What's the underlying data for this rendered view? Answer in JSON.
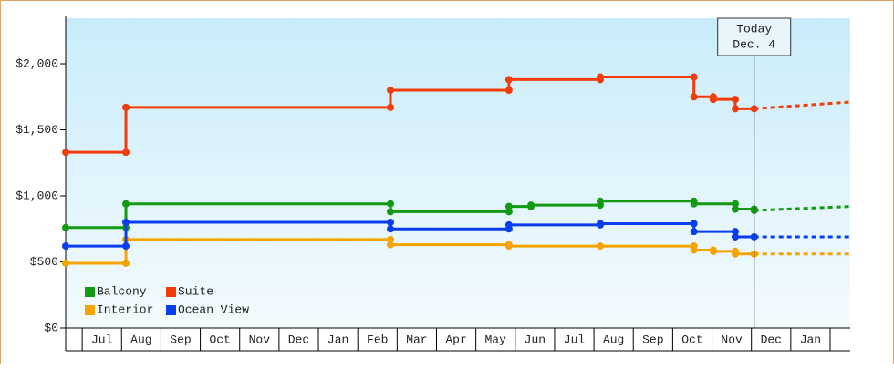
{
  "chart_data": {
    "type": "line",
    "step": true,
    "xlim": [
      0,
      19.93
    ],
    "ylim": [
      0,
      2345
    ],
    "xticks": [
      {
        "value": 0.92,
        "label": "Jul"
      },
      {
        "value": 1.92,
        "label": "Aug"
      },
      {
        "value": 2.92,
        "label": "Sep"
      },
      {
        "value": 3.92,
        "label": "Oct"
      },
      {
        "value": 4.92,
        "label": "Nov"
      },
      {
        "value": 5.92,
        "label": "Dec"
      },
      {
        "value": 6.92,
        "label": "Jan"
      },
      {
        "value": 7.92,
        "label": "Feb"
      },
      {
        "value": 8.92,
        "label": "Mar"
      },
      {
        "value": 9.92,
        "label": "Apr"
      },
      {
        "value": 10.92,
        "label": "May"
      },
      {
        "value": 11.92,
        "label": "Jun"
      },
      {
        "value": 12.92,
        "label": "Jul"
      },
      {
        "value": 13.92,
        "label": "Aug"
      },
      {
        "value": 14.92,
        "label": "Sep"
      },
      {
        "value": 15.92,
        "label": "Oct"
      },
      {
        "value": 16.92,
        "label": "Nov"
      },
      {
        "value": 17.92,
        "label": "Dec"
      },
      {
        "value": 18.92,
        "label": "Jan"
      }
    ],
    "yticks": [
      {
        "value": 0,
        "label": "$0"
      },
      {
        "value": 500,
        "label": "$500"
      },
      {
        "value": 1000,
        "label": "$1,000"
      },
      {
        "value": 1500,
        "label": "$1,500"
      },
      {
        "value": 2000,
        "label": "$2,000"
      }
    ],
    "annotation": {
      "x": 17.49,
      "text": [
        "Today",
        "Dec. 4"
      ]
    },
    "series": [
      {
        "name": "Balcony",
        "color": "#129a12",
        "x": [
          0,
          1.53,
          8.25,
          11.26,
          11.82,
          13.58,
          15.96,
          17.01,
          17.49
        ],
        "values": [
          760,
          940,
          880,
          920,
          930,
          960,
          940,
          900,
          890
        ],
        "forecast": {
          "x": [
            17.49,
            19.93
          ],
          "values": [
            890,
            920
          ]
        }
      },
      {
        "name": "Suite",
        "color": "#f23c0a",
        "x": [
          0,
          1.53,
          8.25,
          11.26,
          13.58,
          15.96,
          16.45,
          17.01,
          17.49
        ],
        "values": [
          1330,
          1670,
          1800,
          1880,
          1900,
          1750,
          1730,
          1660,
          1660
        ],
        "forecast": {
          "x": [
            17.49,
            19.93
          ],
          "values": [
            1660,
            1710
          ]
        }
      },
      {
        "name": "Interior",
        "color": "#f5a300",
        "x": [
          0,
          1.53,
          8.25,
          11.26,
          13.58,
          15.96,
          16.45,
          17.01,
          17.49
        ],
        "values": [
          490,
          670,
          630,
          620,
          620,
          590,
          580,
          560,
          560
        ],
        "forecast": {
          "x": [
            17.49,
            19.93
          ],
          "values": [
            560,
            560
          ]
        }
      },
      {
        "name": "Ocean View",
        "color": "#0a3cf0",
        "x": [
          0,
          1.53,
          8.25,
          11.26,
          13.58,
          15.96,
          17.01,
          17.49
        ],
        "values": [
          620,
          800,
          750,
          780,
          790,
          730,
          690,
          690
        ],
        "forecast": {
          "x": [
            17.49,
            19.93
          ],
          "values": [
            690,
            690
          ]
        }
      }
    ]
  }
}
